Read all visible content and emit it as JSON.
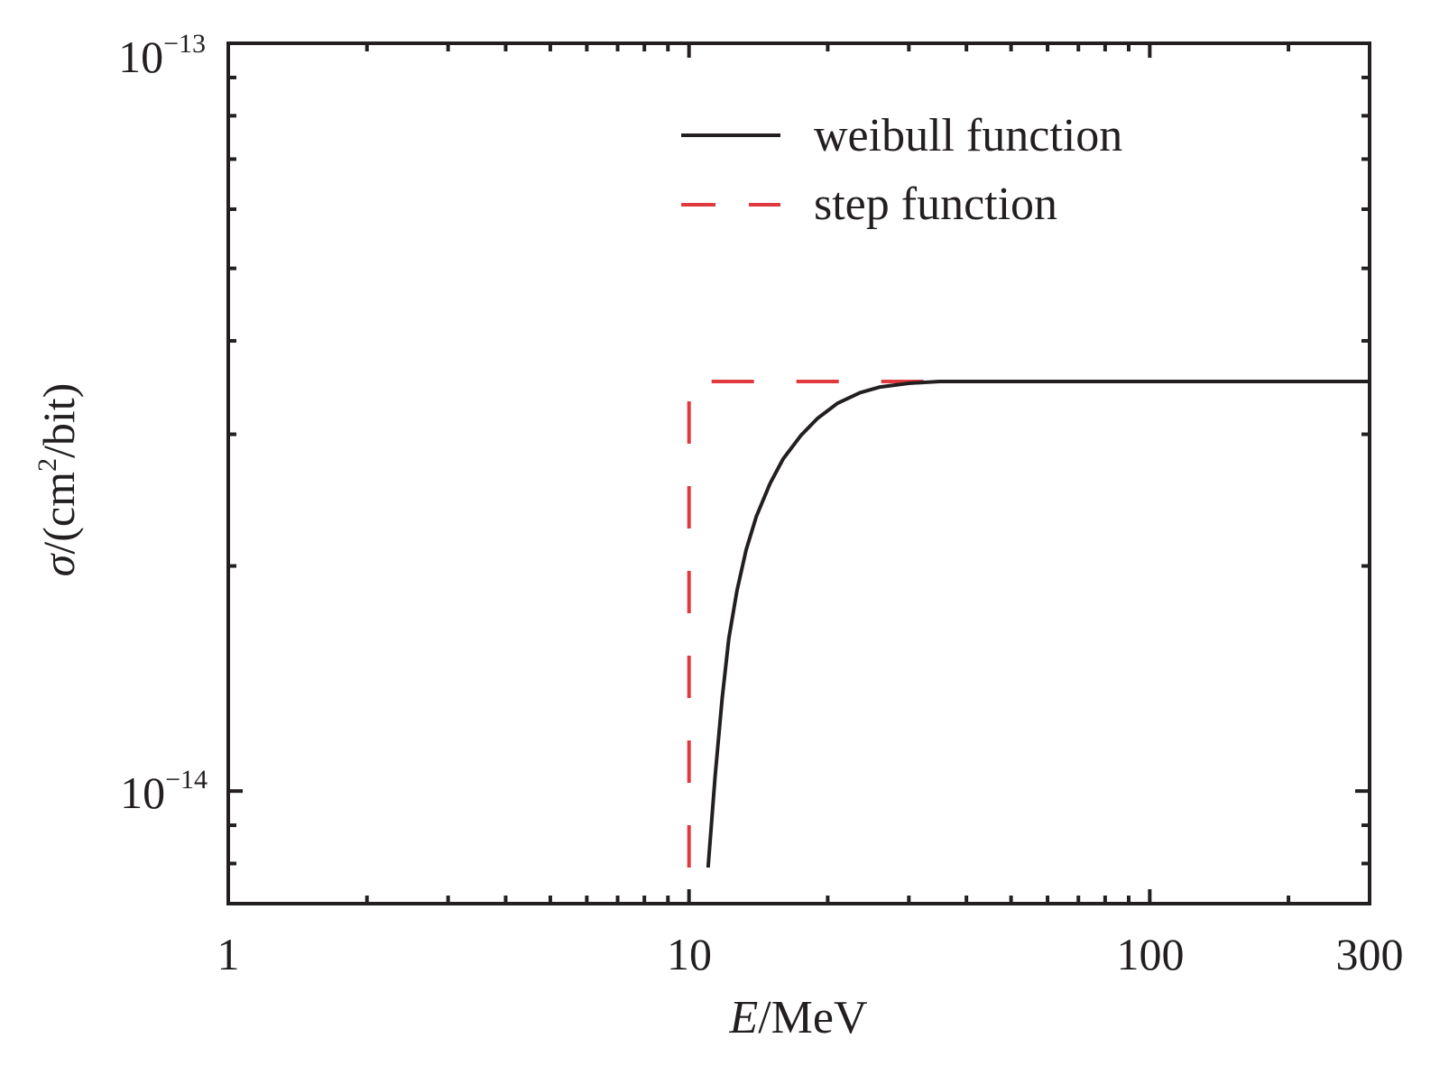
{
  "chart_data": {
    "type": "line",
    "title": "",
    "xlabel": {
      "italic": "E",
      "rest": "/MeV"
    },
    "ylabel": {
      "sigma": "σ",
      "prefix": "/(cm",
      "sup": "2",
      "suffix": "/bit)"
    },
    "xscale": "log",
    "yscale": "log",
    "xlim": [
      1,
      300
    ],
    "ylim": [
      7.07e-15,
      1e-13
    ],
    "x_tick_labels": [
      {
        "value": 1,
        "label": "1"
      },
      {
        "value": 10,
        "label": "10"
      },
      {
        "value": 100,
        "label": "100"
      },
      {
        "value": 300,
        "label": "300"
      }
    ],
    "y_tick_labels": [
      {
        "value": 1e-13,
        "base": "10",
        "exp": "−13"
      },
      {
        "value": 1e-14,
        "base": "10",
        "exp": "−14"
      }
    ],
    "grid": false,
    "legend_position": "top-right",
    "series": [
      {
        "name": "weibull function",
        "style": "solid",
        "color": "#231f20",
        "points": [
          [
            11.0,
            7.9e-15
          ],
          [
            11.4,
            1.05e-14
          ],
          [
            11.8,
            1.33e-14
          ],
          [
            12.2,
            1.6e-14
          ],
          [
            12.7,
            1.85e-14
          ],
          [
            13.3,
            2.1e-14
          ],
          [
            14.0,
            2.33e-14
          ],
          [
            15.0,
            2.58e-14
          ],
          [
            16.0,
            2.78e-14
          ],
          [
            17.5,
            2.99e-14
          ],
          [
            19.0,
            3.15e-14
          ],
          [
            21.0,
            3.3e-14
          ],
          [
            23.5,
            3.41e-14
          ],
          [
            26.0,
            3.47e-14
          ],
          [
            30.0,
            3.51e-14
          ],
          [
            35.0,
            3.53e-14
          ],
          [
            50.0,
            3.53e-14
          ],
          [
            100.0,
            3.53e-14
          ],
          [
            300.0,
            3.53e-14
          ]
        ]
      },
      {
        "name": "step function",
        "style": "dashed",
        "color": "#e0393e",
        "points": [
          [
            10.0,
            7.9e-15
          ],
          [
            10.0,
            3.53e-14
          ],
          [
            300.0,
            3.53e-14
          ]
        ]
      }
    ]
  }
}
